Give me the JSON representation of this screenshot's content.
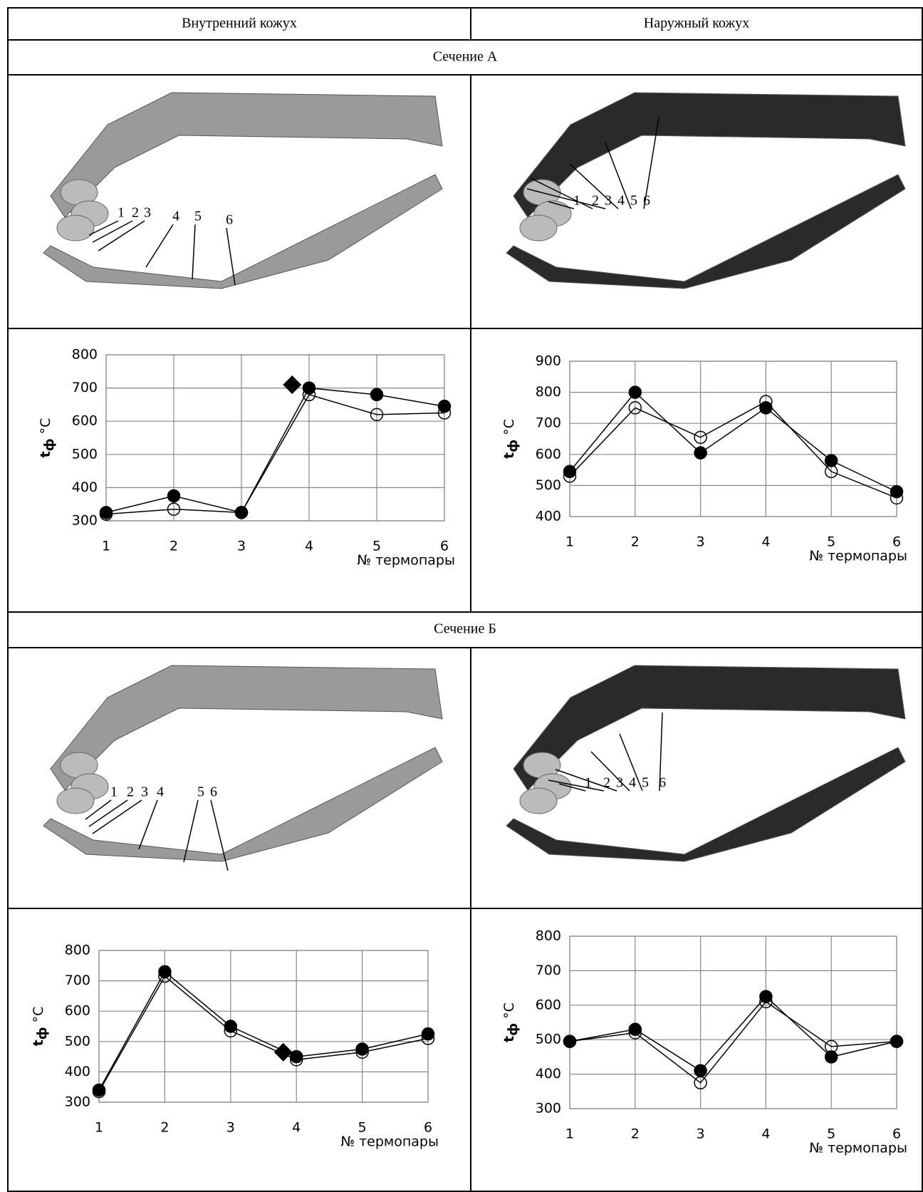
{
  "table": {
    "headers": [
      "Внутренний кожух",
      "Наружный кожух"
    ],
    "sections": [
      "Сечение А",
      "Сечение Б"
    ]
  },
  "image_labels": [
    "1",
    "2",
    "3",
    "4",
    "5",
    "6"
  ],
  "chart_data": [
    {
      "type": "line",
      "ylabel": "t",
      "ylabel_sub": "ф",
      "ylabel_unit": "°C",
      "xlabel": "№ термопары",
      "x": [
        1,
        2,
        3,
        4,
        5,
        6
      ],
      "xlim": [
        1,
        6
      ],
      "xticks": [
        1,
        2,
        3,
        4,
        5,
        6
      ],
      "ylim": [
        300,
        800
      ],
      "yticks": [
        300,
        400,
        500,
        600,
        700,
        800
      ],
      "grid": true,
      "series": [
        {
          "marker": "open",
          "color": "#000000",
          "values": [
            320,
            335,
            325,
            680,
            620,
            625
          ]
        },
        {
          "marker": "filled",
          "color": "#000000",
          "values": [
            325,
            375,
            325,
            700,
            680,
            645
          ]
        },
        {
          "marker": "diamond",
          "color": "#000000",
          "x": [
            3.75
          ],
          "values": [
            710
          ]
        }
      ]
    },
    {
      "type": "line",
      "ylabel": "t",
      "ylabel_sub": "ф",
      "ylabel_unit": "°C",
      "xlabel": "№ термопары",
      "x": [
        1,
        2,
        3,
        4,
        5,
        6
      ],
      "xlim": [
        1,
        6
      ],
      "xticks": [
        1,
        2,
        3,
        4,
        5,
        6
      ],
      "ylim": [
        400,
        900
      ],
      "yticks": [
        400,
        500,
        600,
        700,
        800,
        900
      ],
      "grid": true,
      "series": [
        {
          "marker": "open",
          "color": "#000000",
          "values": [
            530,
            750,
            655,
            770,
            545,
            460
          ]
        },
        {
          "marker": "filled",
          "color": "#000000",
          "values": [
            545,
            800,
            605,
            750,
            580,
            480
          ]
        }
      ]
    },
    {
      "type": "line",
      "ylabel": "t",
      "ylabel_sub": "ф",
      "ylabel_unit": "°C",
      "xlabel": "№ термопары",
      "x": [
        1,
        2,
        3,
        4,
        5,
        6
      ],
      "xlim": [
        1,
        6
      ],
      "xticks": [
        1,
        2,
        3,
        4,
        5,
        6
      ],
      "ylim": [
        300,
        800
      ],
      "yticks": [
        300,
        400,
        500,
        600,
        700,
        800
      ],
      "grid": true,
      "series": [
        {
          "marker": "open",
          "color": "#000000",
          "values": [
            335,
            715,
            535,
            440,
            465,
            510
          ]
        },
        {
          "marker": "filled",
          "color": "#000000",
          "values": [
            340,
            730,
            550,
            450,
            475,
            525
          ]
        },
        {
          "marker": "diamond",
          "color": "#000000",
          "x": [
            3.8
          ],
          "values": [
            465
          ]
        }
      ]
    },
    {
      "type": "line",
      "ylabel": "t",
      "ylabel_sub": "ф",
      "ylabel_unit": "°C",
      "xlabel": "№ термопары",
      "x": [
        1,
        2,
        3,
        4,
        5,
        6
      ],
      "xlim": [
        1,
        6
      ],
      "xticks": [
        1,
        2,
        3,
        4,
        5,
        6
      ],
      "ylim": [
        300,
        800
      ],
      "yticks": [
        300,
        400,
        500,
        600,
        700,
        800
      ],
      "grid": true,
      "series": [
        {
          "marker": "open",
          "color": "#000000",
          "values": [
            495,
            520,
            375,
            610,
            480,
            495
          ]
        },
        {
          "marker": "filled",
          "color": "#000000",
          "values": [
            495,
            530,
            410,
            625,
            450,
            495
          ]
        }
      ]
    }
  ]
}
